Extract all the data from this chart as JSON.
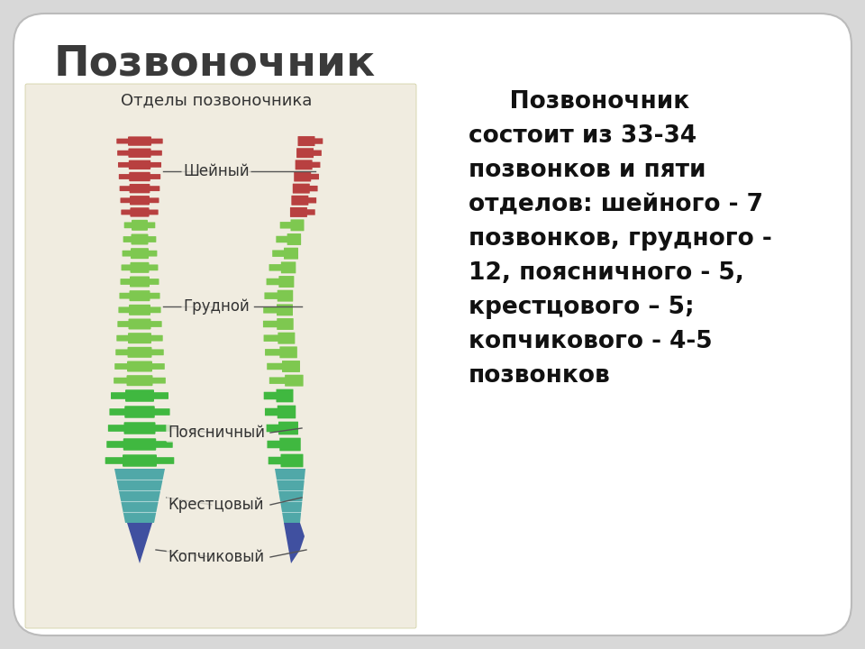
{
  "title": "Позвоночник",
  "title_fontsize": 34,
  "title_color": "#3a3a3a",
  "background_color": "#d8d8d8",
  "card_color": "#ffffff",
  "spine_bg_color": "#f0ece0",
  "caption_text": "Отделы позвоночника",
  "description_lines": [
    "     Позвоночник",
    "состоит из 33-34",
    "позвонков и пяти",
    "отделов: шейного - 7",
    "позвонков, грудного -",
    "12, поясничного - 5,",
    "крестцового – 5;",
    "копчикового - 4-5",
    "позвонков"
  ],
  "description_fontsize": 19,
  "section_colors": {
    "cervical": "#b84040",
    "thoracic_lumbar": "#7ec850",
    "lumbar": "#40b840",
    "sacral": "#50a8a8",
    "coccyx": "#4050a0"
  },
  "labels": [
    "Шейный",
    "Грудной",
    "Поясничный",
    "Крестцовый",
    "Копчиковый"
  ]
}
